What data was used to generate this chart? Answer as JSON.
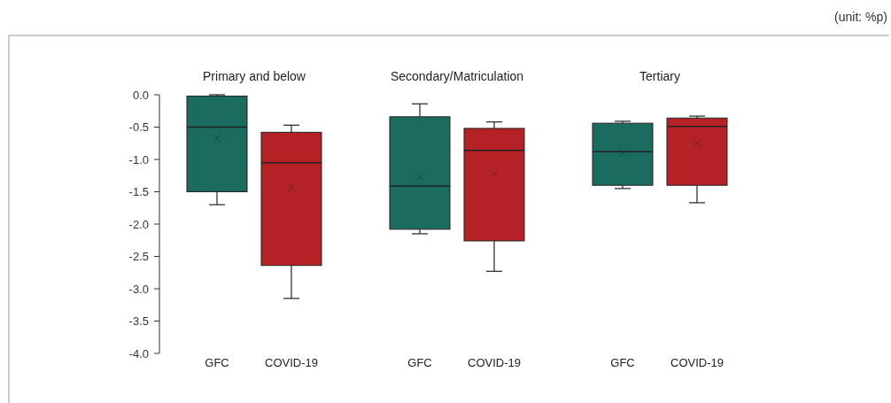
{
  "chart_data": {
    "type": "box",
    "subtitle": "(unit: %p)",
    "categories": [
      "GFC",
      "COVID-19",
      "GFC",
      "COVID-19",
      "GFC",
      "COVID-19"
    ],
    "annotations": [
      "Primary and below",
      "Secondary/Matriculation",
      "Tertiary"
    ],
    "colors": [
      "#1b6b60",
      "#b52226",
      "#1b6b60",
      "#b52226",
      "#1b6b60",
      "#b52226"
    ],
    "boxes": [
      {
        "low": -1.7,
        "q1": -1.5,
        "median": -0.5,
        "q3": -0.02,
        "high": 0.0,
        "mean": -0.67
      },
      {
        "low": -3.15,
        "q1": -2.64,
        "median": -1.05,
        "q3": -0.58,
        "high": -0.47,
        "mean": -1.43
      },
      {
        "low": -2.15,
        "q1": -2.08,
        "median": -1.41,
        "q3": -0.34,
        "high": -0.14,
        "mean": -1.27
      },
      {
        "low": -2.73,
        "q1": -2.26,
        "median": -0.86,
        "q3": -0.52,
        "high": -0.42,
        "mean": -1.22
      },
      {
        "low": -1.45,
        "q1": -1.4,
        "median": -0.88,
        "q3": -0.44,
        "high": -0.41,
        "mean": -0.9
      },
      {
        "low": -1.67,
        "q1": -1.4,
        "median": -0.49,
        "q3": -0.36,
        "high": -0.33,
        "mean": -0.75
      }
    ],
    "ylim": [
      -4,
      0
    ],
    "yticks": [
      {
        "value": -4,
        "label": "-4.0"
      },
      {
        "value": -3.5,
        "label": "-3.5"
      },
      {
        "value": -3,
        "label": "-3.0"
      },
      {
        "value": -2.5,
        "label": "-2.5"
      },
      {
        "value": -2,
        "label": "-2.0"
      },
      {
        "value": -1.5,
        "label": "-1.5"
      },
      {
        "value": -1,
        "label": "-1.0"
      },
      {
        "value": -0.5,
        "label": "-0.5"
      },
      {
        "value": 0,
        "label": "0.0"
      }
    ],
    "grid": false,
    "marker": "cross"
  }
}
